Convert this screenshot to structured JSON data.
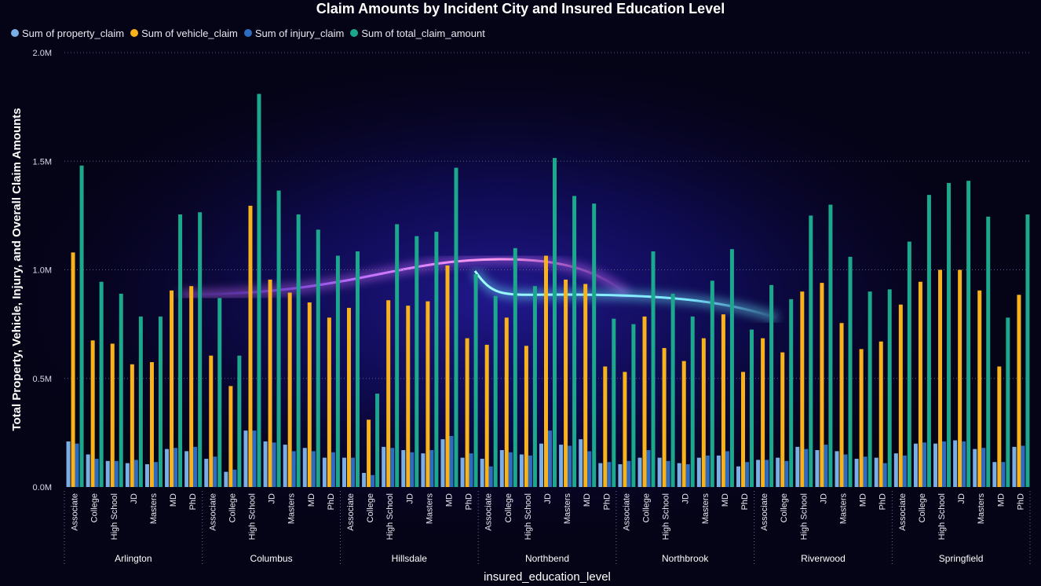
{
  "chart_data": {
    "type": "bar",
    "title": "Claim Amounts by Incident City and Insured Education Level",
    "xlabel": "insured_education_level",
    "ylabel": "Total Property, Vehicle, Injury, and Overall Claim Amounts",
    "ylim": [
      0,
      2000000
    ],
    "yticks": [
      {
        "value": 0,
        "label": "0.0M"
      },
      {
        "value": 500000,
        "label": "0.5M"
      },
      {
        "value": 1000000,
        "label": "1.0M"
      },
      {
        "value": 1500000,
        "label": "1.5M"
      },
      {
        "value": 2000000,
        "label": "2.0M"
      }
    ],
    "grid": true,
    "legend_position": "top-left",
    "groups": [
      "Arlington",
      "Columbus",
      "Hillsdale",
      "Northbend",
      "Northbrook",
      "Riverwood",
      "Springfield"
    ],
    "categories": [
      "Associate",
      "College",
      "High School",
      "JD",
      "Masters",
      "MD",
      "PhD"
    ],
    "series": [
      {
        "name": "Sum of property_claim",
        "color": "#7aaee6",
        "values": [
          [
            210000,
            150000,
            120000,
            110000,
            105000,
            175000,
            165000
          ],
          [
            130000,
            70000,
            260000,
            210000,
            195000,
            180000,
            135000
          ],
          [
            135000,
            65000,
            185000,
            170000,
            155000,
            220000,
            135000
          ],
          [
            130000,
            170000,
            150000,
            200000,
            195000,
            220000,
            110000
          ],
          [
            105000,
            135000,
            135000,
            110000,
            135000,
            145000,
            95000
          ],
          [
            125000,
            135000,
            185000,
            170000,
            165000,
            130000,
            135000
          ],
          [
            155000,
            200000,
            200000,
            215000,
            175000,
            115000,
            185000
          ]
        ]
      },
      {
        "name": "Sum of vehicle_claim",
        "color": "#f7b21c",
        "values": [
          [
            1080000,
            675000,
            660000,
            565000,
            575000,
            905000,
            925000
          ],
          [
            605000,
            465000,
            1295000,
            955000,
            895000,
            850000,
            780000
          ],
          [
            825000,
            310000,
            860000,
            835000,
            855000,
            1020000,
            685000
          ],
          [
            655000,
            780000,
            650000,
            1065000,
            955000,
            935000,
            555000
          ],
          [
            530000,
            785000,
            640000,
            580000,
            685000,
            795000,
            530000
          ],
          [
            685000,
            620000,
            900000,
            940000,
            755000,
            635000,
            670000
          ],
          [
            840000,
            945000,
            1000000,
            1000000,
            905000,
            555000,
            885000
          ]
        ]
      },
      {
        "name": "Sum of injury_claim",
        "color": "#2d6cc0",
        "values": [
          [
            200000,
            130000,
            120000,
            125000,
            115000,
            180000,
            185000
          ],
          [
            140000,
            80000,
            260000,
            205000,
            165000,
            165000,
            160000
          ],
          [
            135000,
            55000,
            180000,
            160000,
            170000,
            235000,
            155000
          ],
          [
            95000,
            160000,
            145000,
            260000,
            190000,
            165000,
            115000
          ],
          [
            120000,
            170000,
            120000,
            105000,
            145000,
            165000,
            115000
          ],
          [
            125000,
            120000,
            175000,
            195000,
            150000,
            140000,
            110000
          ],
          [
            145000,
            205000,
            210000,
            210000,
            180000,
            115000,
            190000
          ]
        ]
      },
      {
        "name": "Sum of total_claim_amount",
        "color": "#1ca88c",
        "values": [
          [
            1480000,
            945000,
            890000,
            785000,
            785000,
            1255000,
            1265000
          ],
          [
            870000,
            605000,
            1810000,
            1365000,
            1255000,
            1185000,
            1065000
          ],
          [
            1085000,
            430000,
            1210000,
            1155000,
            1175000,
            1470000,
            980000
          ],
          [
            880000,
            1100000,
            925000,
            1515000,
            1340000,
            1305000,
            775000
          ],
          [
            750000,
            1085000,
            890000,
            785000,
            950000,
            1095000,
            725000
          ],
          [
            930000,
            865000,
            1250000,
            1300000,
            1060000,
            900000,
            910000
          ],
          [
            1130000,
            1345000,
            1400000,
            1410000,
            1245000,
            780000,
            1255000
          ]
        ]
      }
    ]
  }
}
